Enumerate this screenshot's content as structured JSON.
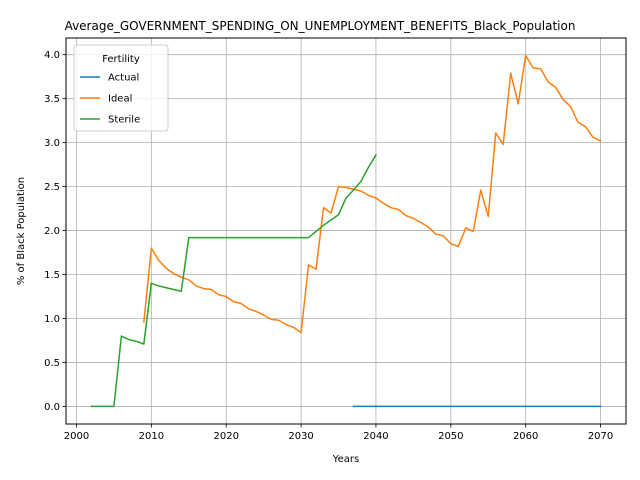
{
  "chart_data": {
    "type": "line",
    "title": "Average_GOVERNMENT_SPENDING_ON_UNEMPLOYMENT_BENEFITS_Black_Population",
    "xlabel": "Years",
    "ylabel": "% of Black Population",
    "xlim": [
      1998.6,
      2073.4
    ],
    "ylim": [
      -0.2,
      4.19
    ],
    "xticks": [
      2000,
      2010,
      2020,
      2030,
      2040,
      2050,
      2060,
      2070
    ],
    "yticks": [
      0.0,
      0.5,
      1.0,
      1.5,
      2.0,
      2.5,
      3.0,
      3.5,
      4.0
    ],
    "xtick_labels": [
      "2000",
      "2010",
      "2020",
      "2030",
      "2040",
      "2050",
      "2060",
      "2070"
    ],
    "ytick_labels": [
      "0.0",
      "0.5",
      "1.0",
      "1.5",
      "2.0",
      "2.5",
      "3.0",
      "3.5",
      "4.0"
    ],
    "grid": true,
    "legend": {
      "title": "Fertility",
      "placement": "upper-left"
    },
    "series": [
      {
        "name": "Actual",
        "color": "#1f77b4",
        "x": [
          2037,
          2040,
          2045,
          2050,
          2055,
          2060,
          2065,
          2070
        ],
        "y": [
          0.0,
          0.0,
          0.0,
          0.0,
          0.0,
          0.0,
          0.0,
          0.0
        ]
      },
      {
        "name": "Ideal",
        "color": "#ff7f0e",
        "x": [
          2009,
          2010,
          2011,
          2012,
          2013,
          2014,
          2015,
          2016,
          2017,
          2018,
          2019,
          2020,
          2021,
          2022,
          2023,
          2024,
          2025,
          2026,
          2027,
          2028,
          2029,
          2030,
          2031,
          2032,
          2033,
          2034,
          2035,
          2036,
          2037,
          2038,
          2039,
          2040,
          2041,
          2042,
          2043,
          2044,
          2045,
          2046,
          2047,
          2048,
          2049,
          2050,
          2051,
          2052,
          2053,
          2054,
          2055,
          2056,
          2057,
          2058,
          2059,
          2060,
          2061,
          2062,
          2063,
          2064,
          2065,
          2066,
          2067,
          2068,
          2069,
          2070
        ],
        "y": [
          0.96,
          1.8,
          1.66,
          1.57,
          1.51,
          1.47,
          1.44,
          1.37,
          1.34,
          1.33,
          1.27,
          1.25,
          1.19,
          1.17,
          1.11,
          1.08,
          1.04,
          0.99,
          0.98,
          0.93,
          0.9,
          0.84,
          1.61,
          1.56,
          2.26,
          2.2,
          2.5,
          2.49,
          2.47,
          2.45,
          2.4,
          2.37,
          2.31,
          2.26,
          2.24,
          2.17,
          2.14,
          2.09,
          2.04,
          1.96,
          1.94,
          1.85,
          1.82,
          2.03,
          1.99,
          2.46,
          2.16,
          3.11,
          2.98,
          3.79,
          3.44,
          3.99,
          3.85,
          3.84,
          3.69,
          3.63,
          3.49,
          3.41,
          3.23,
          3.18,
          3.06,
          3.02
        ]
      },
      {
        "name": "Sterile",
        "color": "#2ca02c",
        "x": [
          2002,
          2005,
          2006,
          2007,
          2008,
          2009,
          2010,
          2011,
          2012,
          2013,
          2014,
          2015,
          2016,
          2017,
          2018,
          2019,
          2020,
          2021,
          2022,
          2023,
          2024,
          2025,
          2026,
          2027,
          2028,
          2029,
          2030,
          2031,
          2032,
          2033,
          2034,
          2035,
          2036,
          2037,
          2038,
          2039,
          2040
        ],
        "y": [
          0.0,
          0.0,
          0.8,
          0.76,
          0.74,
          0.71,
          1.4,
          1.37,
          1.35,
          1.33,
          1.31,
          1.92,
          1.92,
          1.92,
          1.92,
          1.92,
          1.92,
          1.92,
          1.92,
          1.92,
          1.92,
          1.92,
          1.92,
          1.92,
          1.92,
          1.92,
          1.92,
          1.92,
          1.99,
          2.06,
          2.12,
          2.18,
          2.37,
          2.46,
          2.56,
          2.72,
          2.86
        ]
      }
    ]
  }
}
